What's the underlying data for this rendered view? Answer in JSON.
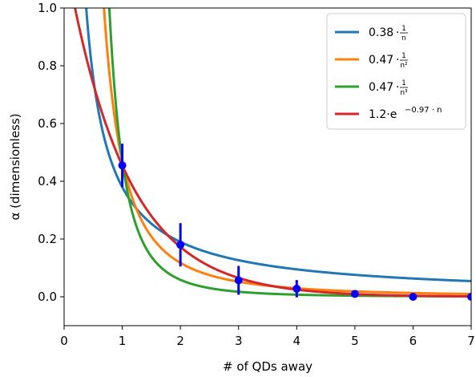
{
  "chart_data": {
    "type": "line",
    "xlabel": "# of QDs away",
    "ylabel": "α (dimensionless)",
    "xlim": [
      0,
      7
    ],
    "ylim": [
      -0.1,
      1.0
    ],
    "x_ticks": [
      "0",
      "1",
      "2",
      "3",
      "4",
      "5",
      "6",
      "7"
    ],
    "y_ticks": [
      "0.0",
      "0.2",
      "0.4",
      "0.6",
      "0.8",
      "1.0"
    ],
    "grid": false,
    "legend_position": "top-right",
    "series": [
      {
        "name": "0.38·1/n",
        "legend": {
          "coef": "0.38",
          "dot": "·",
          "num": "1",
          "den": "n"
        },
        "model": "power",
        "a": 0.38,
        "p": 1,
        "color": "#1f77b4"
      },
      {
        "name": "0.47·1/n²",
        "legend": {
          "coef": "0.47",
          "dot": "·",
          "num": "1",
          "den": "n²"
        },
        "model": "power",
        "a": 0.47,
        "p": 2,
        "color": "#ff7f0e"
      },
      {
        "name": "0.47·1/n³",
        "legend": {
          "coef": "0.47",
          "dot": "·",
          "num": "1",
          "den": "n³"
        },
        "model": "power",
        "a": 0.47,
        "p": 3,
        "color": "#2ca02c"
      },
      {
        "name": "1.2·e^(−0.97·n)",
        "legend": {
          "base": "1.2·e",
          "exp": "−0.97 · n"
        },
        "model": "exp",
        "a": 1.2,
        "b": -0.97,
        "color": "#d62728"
      }
    ],
    "measured": {
      "color": "#0000ff",
      "points": [
        {
          "x": 1,
          "y": 0.455,
          "err": 0.075
        },
        {
          "x": 2,
          "y": 0.18,
          "err": 0.075
        },
        {
          "x": 3,
          "y": 0.057,
          "err": 0.05
        },
        {
          "x": 4,
          "y": 0.028,
          "err": 0.03
        },
        {
          "x": 5,
          "y": 0.01,
          "err": 0.005
        },
        {
          "x": 6,
          "y": 0.0,
          "err": 0.003
        },
        {
          "x": 7,
          "y": 0.0,
          "err": 0.002
        }
      ]
    }
  }
}
